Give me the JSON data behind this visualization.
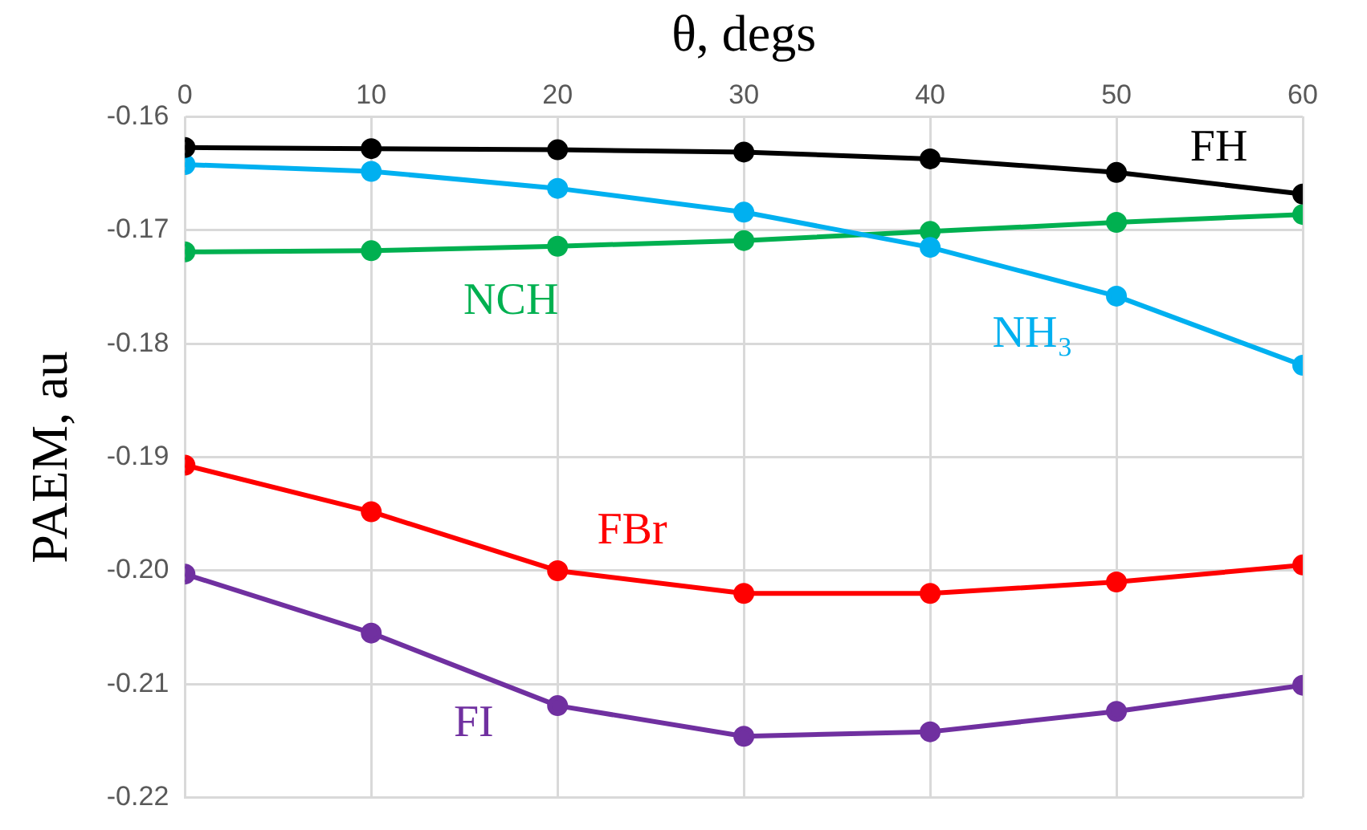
{
  "chart_data": {
    "type": "line",
    "xlabel": "θ, degs",
    "ylabel": "PAEM, au",
    "x": [
      0,
      10,
      20,
      30,
      40,
      50,
      60
    ],
    "xlim": [
      0,
      60
    ],
    "xticks": [
      0,
      10,
      20,
      30,
      40,
      50,
      60
    ],
    "ylim": [
      -0.22,
      -0.16
    ],
    "yticks": [
      {
        "value": -0.22,
        "label": "-0.22"
      },
      {
        "value": -0.21,
        "label": "-0.21"
      },
      {
        "value": -0.2,
        "label": "-0.20"
      },
      {
        "value": -0.19,
        "label": "-0.19"
      },
      {
        "value": -0.18,
        "label": "-0.18"
      },
      {
        "value": -0.17,
        "label": "-0.17"
      },
      {
        "value": -0.16,
        "label": "-0.16"
      }
    ],
    "grid": true,
    "legend": false,
    "marker": "circle",
    "series": [
      {
        "name": "FH",
        "color": "#000000",
        "values": [
          -0.1627,
          -0.1628,
          -0.1629,
          -0.1631,
          -0.1637,
          -0.1649,
          -0.1668
        ]
      },
      {
        "name": "NH₃",
        "color": "#00b0f0",
        "values": [
          -0.1642,
          -0.1648,
          -0.1663,
          -0.1684,
          -0.1715,
          -0.1758,
          -0.1819
        ]
      },
      {
        "name": "NCH",
        "color": "#00b050",
        "values": [
          -0.1719,
          -0.1718,
          -0.1714,
          -0.1709,
          -0.1701,
          -0.1693,
          -0.1686
        ]
      },
      {
        "name": "FBr",
        "color": "#ff0000",
        "values": [
          -0.1907,
          -0.1948,
          -0.2,
          -0.202,
          -0.202,
          -0.201,
          -0.1995
        ]
      },
      {
        "name": "FI",
        "color": "#7030a0",
        "values": [
          -0.2003,
          -0.2055,
          -0.2119,
          -0.2146,
          -0.2142,
          -0.2124,
          -0.2101
        ]
      }
    ]
  }
}
